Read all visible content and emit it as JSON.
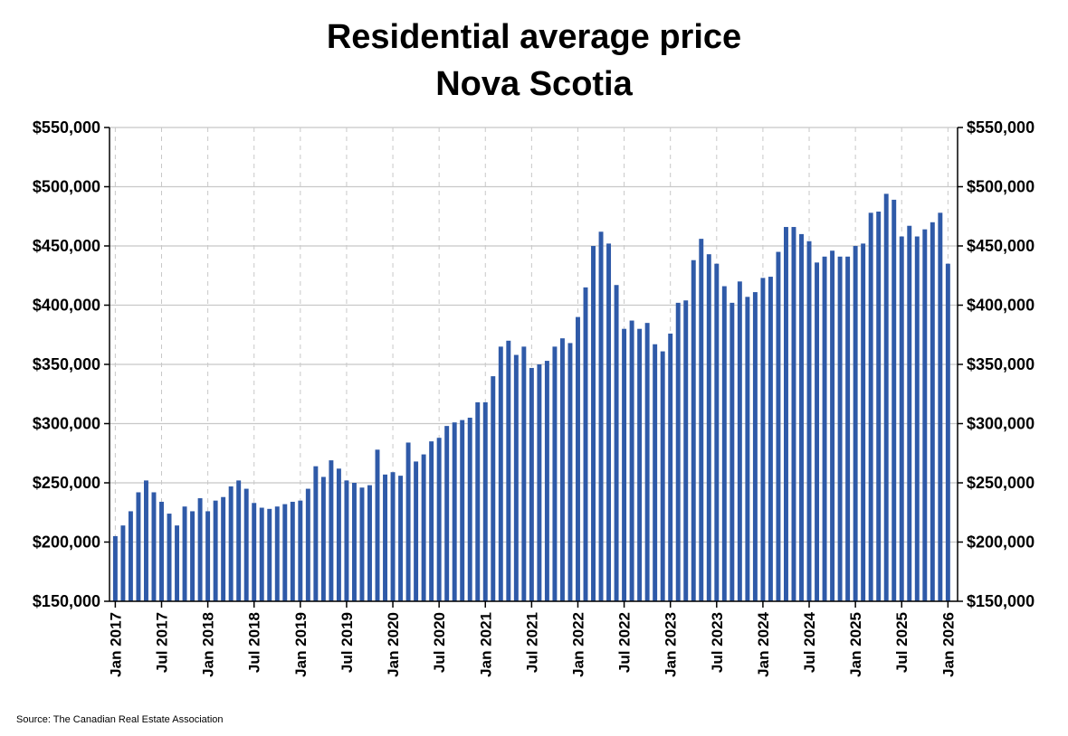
{
  "chart_data": {
    "type": "bar",
    "title": "Residential average price",
    "subtitle": "Nova Scotia",
    "source": "Source: The Canadian Real Estate Association",
    "ylim": [
      150000,
      550000
    ],
    "y_ticks": [
      150000,
      200000,
      250000,
      300000,
      350000,
      400000,
      450000,
      500000,
      550000
    ],
    "y_tick_labels": [
      "$150,000",
      "$200,000",
      "$250,000",
      "$300,000",
      "$350,000",
      "$400,000",
      "$450,000",
      "$500,000",
      "$550,000"
    ],
    "x_tick_labels": [
      "Jan 2017",
      "Jul 2017",
      "Jan 2018",
      "Jul 2018",
      "Jan 2019",
      "Jul 2019",
      "Jan 2020",
      "Jul 2020",
      "Jan 2021",
      "Jul 2021",
      "Jan 2022",
      "Jul 2022",
      "Jan 2023",
      "Jul 2023",
      "Jan 2024",
      "Jul 2024",
      "Jan 2025",
      "Jul 2025",
      "Jan 2026"
    ],
    "x_tick_every_months": 6,
    "grid": true,
    "bar_color": "#2f5aa8",
    "start_month": "Jan 2017",
    "values": [
      205000,
      214000,
      226000,
      242000,
      252000,
      242000,
      234000,
      224000,
      214000,
      230000,
      226000,
      237000,
      226000,
      235000,
      238000,
      247000,
      252000,
      245000,
      233000,
      229000,
      228000,
      230000,
      232000,
      234000,
      235000,
      245000,
      264000,
      255000,
      269000,
      262000,
      252000,
      250000,
      246000,
      248000,
      278000,
      257000,
      259000,
      256000,
      284000,
      268000,
      274000,
      285000,
      288000,
      298000,
      301000,
      303000,
      305000,
      318000,
      318000,
      340000,
      365000,
      370000,
      358000,
      365000,
      347000,
      350000,
      353000,
      365000,
      372000,
      368000,
      390000,
      415000,
      450000,
      462000,
      452000,
      417000,
      380000,
      387000,
      380000,
      385000,
      367000,
      361000,
      376000,
      402000,
      404000,
      438000,
      456000,
      443000,
      435000,
      416000,
      402000,
      420000,
      407000,
      411000,
      423000,
      424000,
      445000,
      466000,
      466000,
      460000,
      454000,
      436000,
      441000,
      446000,
      441000,
      441000,
      450000,
      452000,
      478000,
      479000,
      494000,
      489000,
      458000,
      467000,
      458000,
      464000,
      470000,
      478000,
      435000
    ]
  }
}
